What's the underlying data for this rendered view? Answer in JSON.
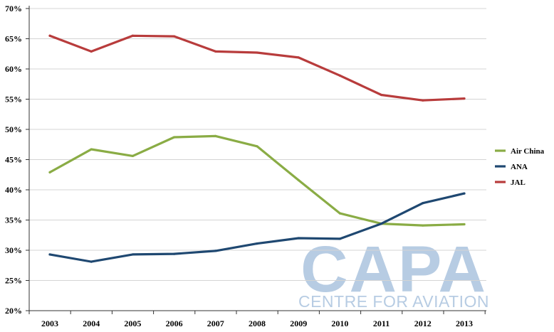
{
  "colors": {
    "air_china": "#8aac45",
    "ana": "#1f4871",
    "jal": "#b83c3c",
    "grid": "#d4d4d4",
    "axis": "#333333",
    "watermark": "#b7cce3"
  },
  "watermark": {
    "logo_text": "CAPA",
    "subtitle": "CENTRE FOR AVIATION"
  },
  "chart_data": {
    "type": "line",
    "title": "",
    "xlabel": "",
    "ylabel": "",
    "x": [
      "2003",
      "2004",
      "2005",
      "2006",
      "2007",
      "2008",
      "2009",
      "2010",
      "2011",
      "2012",
      "2013"
    ],
    "ylim": [
      20,
      70
    ],
    "yticks": [
      20,
      25,
      30,
      35,
      40,
      45,
      50,
      55,
      60,
      65,
      70
    ],
    "ytick_labels": [
      "20%",
      "25%",
      "30%",
      "35%",
      "40%",
      "45%",
      "50%",
      "55%",
      "60%",
      "65%",
      "70%"
    ],
    "grid": true,
    "legend_position": "right",
    "series": [
      {
        "name": "Air China",
        "color_key": "air_china",
        "values": [
          42.9,
          46.7,
          45.6,
          48.7,
          48.9,
          47.2,
          41.6,
          36.1,
          34.4,
          34.1,
          34.3
        ]
      },
      {
        "name": "ANA",
        "color_key": "ana",
        "values": [
          29.3,
          28.1,
          29.3,
          29.4,
          29.9,
          31.1,
          32.0,
          31.9,
          34.4,
          37.8,
          39.4
        ]
      },
      {
        "name": "JAL",
        "color_key": "jal",
        "values": [
          65.5,
          62.9,
          65.5,
          65.4,
          62.9,
          62.7,
          61.9,
          58.9,
          55.7,
          54.8,
          55.1
        ]
      }
    ]
  }
}
